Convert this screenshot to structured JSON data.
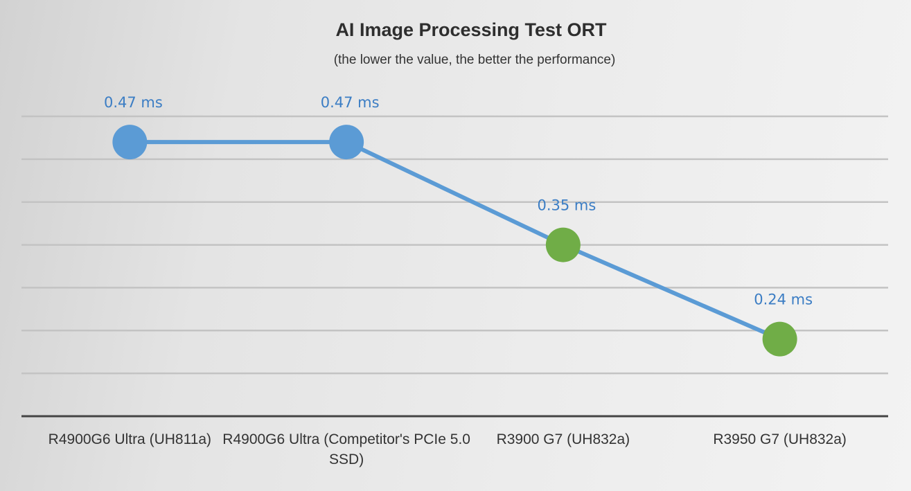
{
  "chart_data": {
    "type": "line",
    "title": "AI Image Processing Test ORT",
    "subtitle": "(the lower the value, the better the performance)",
    "categories": [
      "R4900G6 Ultra (UH811a)",
      "R4900G6 Ultra (Competitor's PCIe 5.0 SSD)",
      "R3900 G7 (UH832a)",
      "R3950 G7 (UH832a)"
    ],
    "values": [
      0.47,
      0.47,
      0.35,
      0.24
    ],
    "data_labels": [
      "0.47 ms",
      "0.47 ms",
      "0.35 ms",
      "0.24 ms"
    ],
    "point_colors": [
      "#5b9bd5",
      "#5b9bd5",
      "#70ad47",
      "#70ad47"
    ],
    "line_color": "#5b9bd5",
    "unit": "ms",
    "xlabel": "",
    "ylabel": "",
    "ylim": [
      0.15,
      0.5
    ],
    "grid_step": 0.05,
    "grid": true,
    "legend": "none"
  }
}
